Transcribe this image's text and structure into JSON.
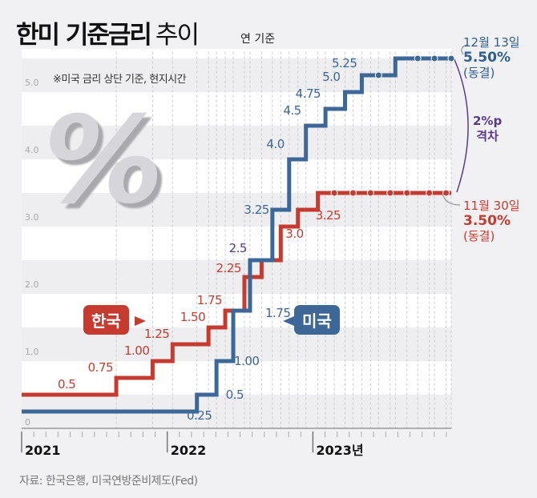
{
  "header": {
    "title_bold": "한미 기준금리",
    "title_light": "추이",
    "unit": "연 기준",
    "note": "※미국 금리 상단 기준, 현지시간"
  },
  "footer": {
    "source": "자료: 한국은행, 미국연방준비제도(Fed)"
  },
  "annotations": {
    "us": {
      "date": "12월 13일",
      "rate": "5.50%",
      "status": "(동결)"
    },
    "gap": {
      "value": "2%p",
      "label": "격차"
    },
    "korea": {
      "date": "11월 30일",
      "rate": "3.50%",
      "status": "(동결)"
    }
  },
  "legend": {
    "korea": "한국",
    "us": "미국"
  },
  "colors": {
    "korea": "#c63a2f",
    "us": "#3c6796",
    "shared": "#5a3a88"
  },
  "chart_data": {
    "type": "line",
    "step": true,
    "title": "한미 기준금리 추이",
    "ylabel": "연 %",
    "ylim": [
      0,
      5.5
    ],
    "yticks": [
      "0",
      "1.0",
      "2.0",
      "3.0",
      "4.0",
      "5.0"
    ],
    "xticks": [
      "2021",
      "2022",
      "2023년"
    ],
    "xrange": [
      "2021-01-01",
      "2023-12-13"
    ],
    "series": [
      {
        "name": "한국",
        "steps": [
          {
            "date": "2021-01-01",
            "value": 0.5,
            "label": "0.5"
          },
          {
            "date": "2021-08-26",
            "value": 0.75,
            "label": "0.75"
          },
          {
            "date": "2021-11-25",
            "value": 1.0,
            "label": "1.00"
          },
          {
            "date": "2022-01-14",
            "value": 1.25,
            "label": "1.25"
          },
          {
            "date": "2022-04-14",
            "value": 1.5,
            "label": "1.50"
          },
          {
            "date": "2022-05-26",
            "value": 1.75,
            "label": "1.75"
          },
          {
            "date": "2022-07-13",
            "value": 2.25,
            "label": "2.25"
          },
          {
            "date": "2022-08-25",
            "value": 2.5,
            "label": ""
          },
          {
            "date": "2022-10-12",
            "value": 3.0,
            "label": "3.0"
          },
          {
            "date": "2022-11-24",
            "value": 3.25,
            "label": "3.25"
          },
          {
            "date": "2023-01-13",
            "value": 3.5,
            "label": ""
          }
        ],
        "holds": [
          "2023-02-23",
          "2023-04-11",
          "2023-05-25",
          "2023-07-13",
          "2023-08-24",
          "2023-10-19",
          "2023-11-30"
        ]
      },
      {
        "name": "미국",
        "steps": [
          {
            "date": "2021-01-01",
            "value": 0.25,
            "label": "0.25"
          },
          {
            "date": "2022-03-16",
            "value": 0.5,
            "label": "0.5"
          },
          {
            "date": "2022-05-04",
            "value": 1.0,
            "label": "1.00"
          },
          {
            "date": "2022-06-15",
            "value": 1.75,
            "label": "1.75"
          },
          {
            "date": "2022-07-27",
            "value": 2.5,
            "label": "2.5"
          },
          {
            "date": "2022-09-21",
            "value": 3.25,
            "label": "3.25"
          },
          {
            "date": "2022-11-02",
            "value": 4.0,
            "label": "4.0"
          },
          {
            "date": "2022-12-14",
            "value": 4.5,
            "label": "4.5"
          },
          {
            "date": "2023-02-01",
            "value": 4.75,
            "label": "4.75"
          },
          {
            "date": "2023-03-22",
            "value": 5.0,
            "label": "5.0"
          },
          {
            "date": "2023-05-03",
            "value": 5.25,
            "label": "5.25"
          },
          {
            "date": "2023-07-26",
            "value": 5.5,
            "label": ""
          }
        ],
        "holds": [
          "2023-06-14",
          "2023-09-20",
          "2023-11-01",
          "2023-12-13"
        ]
      }
    ]
  }
}
